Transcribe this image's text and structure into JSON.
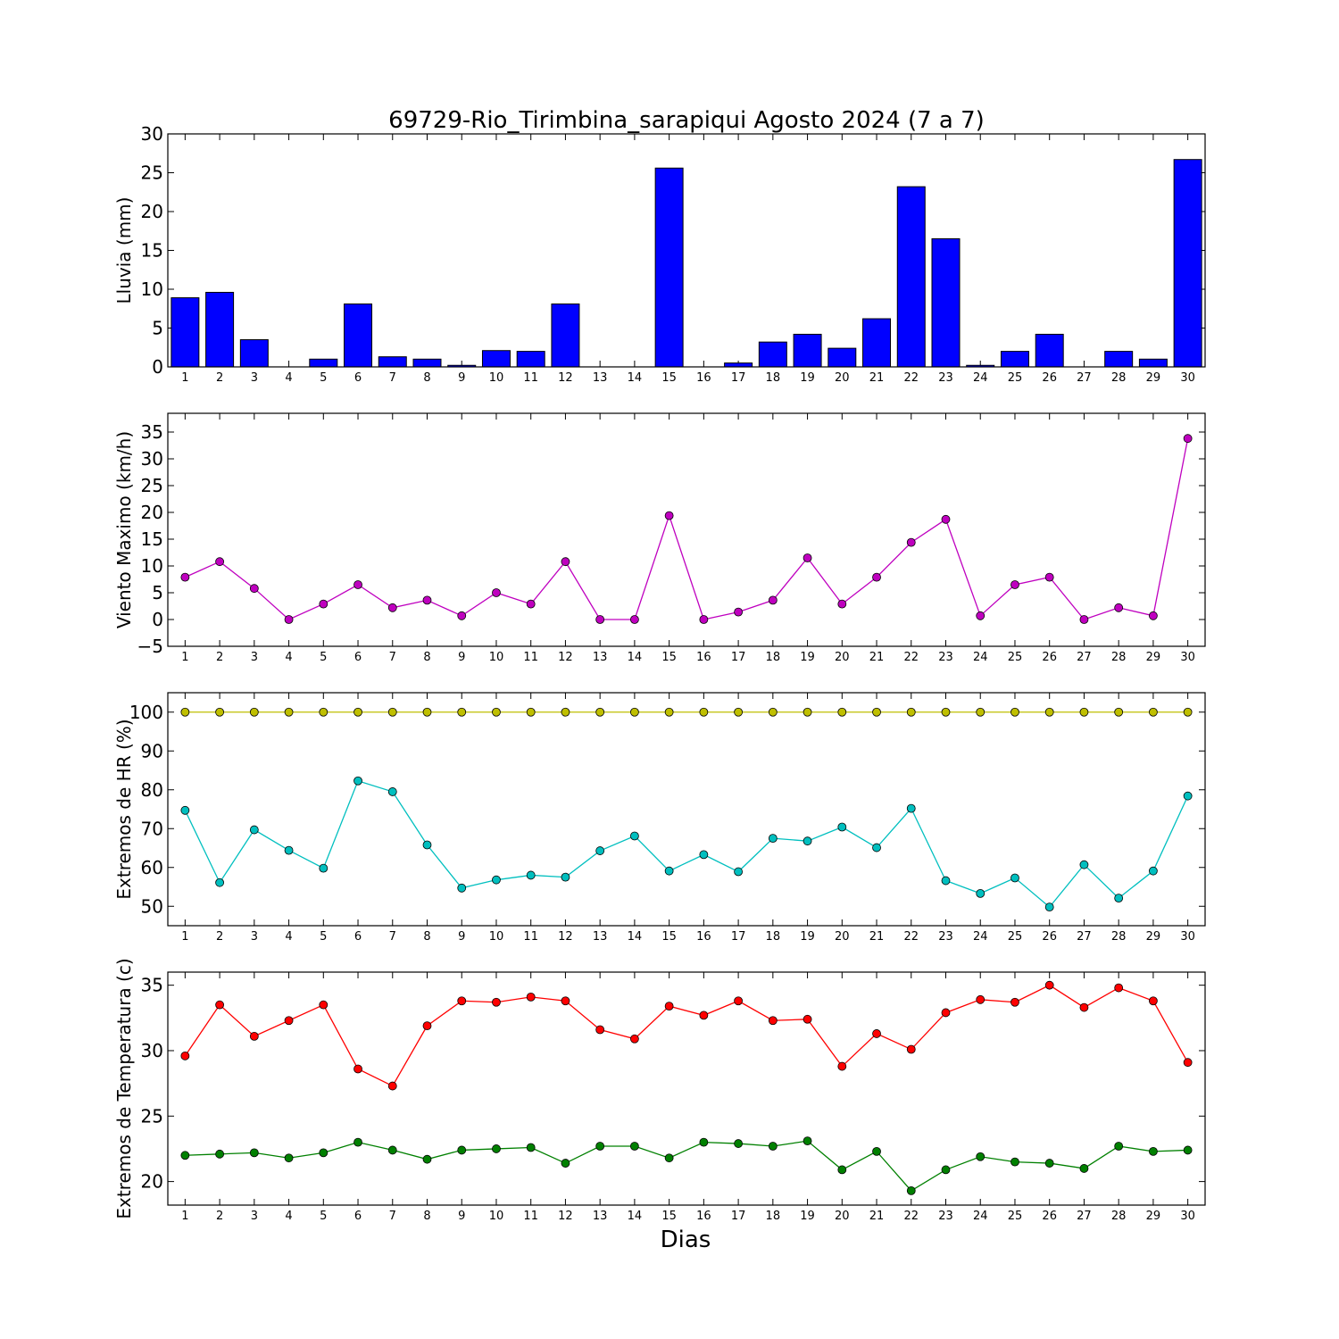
{
  "title": "69729-Rio_Tirimbina_sarapiqui Agosto 2024  (7 a 7)",
  "xlabel": "Dias",
  "colors": {
    "rain": "#0000ff",
    "wind": "#bf00bf",
    "hr_max": "#bfbf00",
    "hr_min": "#00bfbf",
    "temp_max": "#ff0000",
    "temp_min": "#008000"
  },
  "chart_data": [
    {
      "type": "bar",
      "ylabel": "Lluvia (mm)",
      "ylim": [
        0,
        30
      ],
      "yticks": [
        0,
        5,
        10,
        15,
        20,
        25,
        30
      ],
      "categories": [
        1,
        2,
        3,
        4,
        5,
        6,
        7,
        8,
        9,
        10,
        11,
        12,
        13,
        14,
        15,
        16,
        17,
        18,
        19,
        20,
        21,
        22,
        23,
        24,
        25,
        26,
        27,
        28,
        29,
        30
      ],
      "series": [
        {
          "values": [
            8.9,
            9.6,
            3.5,
            0,
            1.0,
            8.1,
            1.3,
            1.0,
            0.2,
            2.1,
            2.0,
            8.1,
            0,
            0,
            25.6,
            0,
            0.5,
            3.2,
            4.2,
            2.4,
            6.2,
            23.2,
            16.5,
            0.2,
            2.0,
            4.2,
            0,
            2.0,
            1.0,
            26.7
          ]
        }
      ]
    },
    {
      "type": "line",
      "ylabel": "Viento Maximo (km/h)",
      "ylim": [
        -5,
        38.5
      ],
      "yticks": [
        -5,
        0,
        5,
        10,
        15,
        20,
        25,
        30,
        35
      ],
      "x": [
        1,
        2,
        3,
        4,
        5,
        6,
        7,
        8,
        9,
        10,
        11,
        12,
        13,
        14,
        15,
        16,
        17,
        18,
        19,
        20,
        21,
        22,
        23,
        24,
        25,
        26,
        27,
        28,
        29,
        30
      ],
      "series": [
        {
          "values": [
            7.9,
            10.8,
            5.8,
            0,
            2.9,
            6.5,
            2.2,
            3.6,
            0.7,
            5.0,
            2.9,
            10.8,
            0,
            0,
            19.4,
            0,
            1.4,
            3.6,
            11.5,
            2.9,
            7.9,
            14.4,
            18.7,
            0.7,
            6.5,
            7.9,
            0,
            2.2,
            0.7,
            33.8
          ]
        }
      ]
    },
    {
      "type": "line",
      "ylabel": "Extremos de HR (%)",
      "ylim": [
        45,
        105
      ],
      "yticks": [
        50,
        60,
        70,
        80,
        90,
        100
      ],
      "x": [
        1,
        2,
        3,
        4,
        5,
        6,
        7,
        8,
        9,
        10,
        11,
        12,
        13,
        14,
        15,
        16,
        17,
        18,
        19,
        20,
        21,
        22,
        23,
        24,
        25,
        26,
        27,
        28,
        29,
        30
      ],
      "series": [
        {
          "values": [
            100,
            100,
            100,
            100,
            100,
            100,
            100,
            100,
            100,
            100,
            100,
            100,
            100,
            100,
            100,
            100,
            100,
            100,
            100,
            100,
            100,
            100,
            100,
            100,
            100,
            100,
            100,
            100,
            100,
            100
          ]
        },
        {
          "values": [
            74.7,
            56.1,
            69.7,
            64.4,
            59.8,
            82.3,
            79.5,
            65.8,
            54.7,
            56.8,
            58.0,
            57.5,
            64.3,
            68.1,
            59.1,
            63.3,
            58.9,
            67.5,
            66.8,
            70.4,
            65.1,
            75.2,
            56.6,
            53.3,
            57.3,
            49.8,
            60.7,
            52.1,
            59.1,
            78.4
          ]
        }
      ]
    },
    {
      "type": "line",
      "ylabel": "Extremos de Temperatura (c)",
      "ylim": [
        18.2,
        36.0
      ],
      "yticks": [
        20,
        25,
        30,
        35
      ],
      "x": [
        1,
        2,
        3,
        4,
        5,
        6,
        7,
        8,
        9,
        10,
        11,
        12,
        13,
        14,
        15,
        16,
        17,
        18,
        19,
        20,
        21,
        22,
        23,
        24,
        25,
        26,
        27,
        28,
        29,
        30
      ],
      "series": [
        {
          "values": [
            29.6,
            33.5,
            31.1,
            32.3,
            33.5,
            28.6,
            27.3,
            31.9,
            33.8,
            33.7,
            34.1,
            33.8,
            31.6,
            30.9,
            33.4,
            32.7,
            33.8,
            32.3,
            32.4,
            28.8,
            31.3,
            30.1,
            32.9,
            33.9,
            33.7,
            35.0,
            33.3,
            34.8,
            33.8,
            29.1
          ]
        },
        {
          "values": [
            22.0,
            22.1,
            22.2,
            21.8,
            22.2,
            23.0,
            22.4,
            21.7,
            22.4,
            22.5,
            22.6,
            21.4,
            22.7,
            22.7,
            21.8,
            23.0,
            22.9,
            22.7,
            23.1,
            20.9,
            22.3,
            19.3,
            20.9,
            21.9,
            21.5,
            21.4,
            21.0,
            22.7,
            22.3,
            22.4
          ]
        }
      ]
    }
  ]
}
